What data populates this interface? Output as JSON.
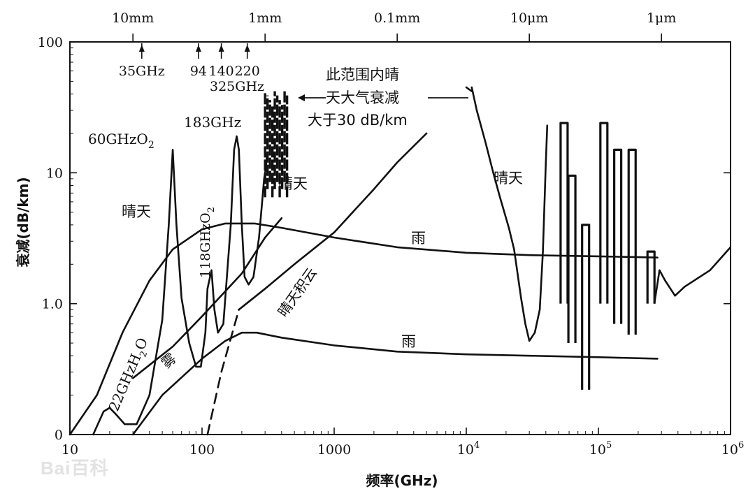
{
  "chart_data": {
    "type": "line",
    "xlabel": "频率(GHz)",
    "ylabel": "衰减(dB/km)",
    "xscale": "log",
    "xlim": [
      10,
      1000000
    ],
    "ylim": [
      0.1,
      100
    ],
    "x_ticks": [
      {
        "value": 10,
        "label": "10"
      },
      {
        "value": 100,
        "label": "100"
      },
      {
        "value": 1000,
        "label": "1000"
      },
      {
        "value": 10000,
        "label": "10",
        "sup": "4"
      },
      {
        "value": 100000,
        "label": "10",
        "sup": "5"
      },
      {
        "value": 1000000,
        "label": "10",
        "sup": "6"
      }
    ],
    "y_ticks": [
      {
        "value": 0.1,
        "label": "0"
      },
      {
        "value": 1,
        "label": "1.0"
      },
      {
        "value": 10,
        "label": "10"
      },
      {
        "value": 100,
        "label": "100"
      }
    ],
    "top_axis_ticks": [
      {
        "value": 30,
        "label": "10mm"
      },
      {
        "value": 300,
        "label": "1mm"
      },
      {
        "value": 3000,
        "label": "0.1mm"
      },
      {
        "value": 30000,
        "label": "10μm"
      },
      {
        "value": 300000,
        "label": "1μm"
      }
    ],
    "series": [
      {
        "id": "rain-heavy",
        "dashed": false,
        "points": [
          [
            10,
            0.1
          ],
          [
            16,
            0.2
          ],
          [
            25,
            0.6
          ],
          [
            40,
            1.5
          ],
          [
            60,
            2.6
          ],
          [
            100,
            3.7
          ],
          [
            150,
            4.1
          ],
          [
            250,
            4.1
          ],
          [
            400,
            3.8
          ],
          [
            1000,
            3.2
          ],
          [
            3000,
            2.7
          ],
          [
            10000,
            2.45
          ],
          [
            30000,
            2.35
          ],
          [
            100000,
            2.3
          ],
          [
            280000,
            2.25
          ]
        ]
      },
      {
        "id": "rain-light",
        "dashed": false,
        "points": [
          [
            30,
            0.1
          ],
          [
            50,
            0.2
          ],
          [
            100,
            0.38
          ],
          [
            150,
            0.52
          ],
          [
            200,
            0.6
          ],
          [
            260,
            0.6
          ],
          [
            400,
            0.55
          ],
          [
            1000,
            0.48
          ],
          [
            3000,
            0.43
          ],
          [
            10000,
            0.41
          ],
          [
            100000,
            0.39
          ],
          [
            280000,
            0.38
          ]
        ]
      },
      {
        "id": "fog",
        "dashed": false,
        "points": [
          [
            30,
            0.27
          ],
          [
            60,
            0.47
          ],
          [
            100,
            0.8
          ],
          [
            200,
            1.7
          ],
          [
            300,
            3.2
          ],
          [
            400,
            4.5
          ]
        ]
      },
      {
        "id": "clear-cumulus",
        "dashed": false,
        "points": [
          [
            190,
            0.9
          ],
          [
            300,
            1.3
          ],
          [
            500,
            2
          ],
          [
            1000,
            3.5
          ],
          [
            2000,
            7.5
          ],
          [
            3000,
            12
          ],
          [
            5000,
            20
          ]
        ]
      },
      {
        "id": "clear-cumulus-dashed",
        "dashed": true,
        "points": [
          [
            110,
            0.1
          ],
          [
            140,
            0.3
          ],
          [
            190,
            0.9
          ]
        ]
      },
      {
        "id": "clear-air-mm",
        "dashed": false,
        "points": [
          [
            15,
            0.1
          ],
          [
            18,
            0.15
          ],
          [
            20,
            0.16
          ],
          [
            22,
            0.145
          ],
          [
            26,
            0.12
          ],
          [
            32,
            0.12
          ],
          [
            40,
            0.2
          ],
          [
            50,
            0.75
          ],
          [
            56,
            4
          ],
          [
            60,
            15
          ],
          [
            64,
            4
          ],
          [
            70,
            1.1
          ],
          [
            80,
            0.5
          ],
          [
            90,
            0.33
          ],
          [
            98,
            0.33
          ],
          [
            106,
            0.6
          ],
          [
            110,
            1.3
          ],
          [
            118,
            1.8
          ],
          [
            124,
            0.9
          ],
          [
            132,
            0.6
          ],
          [
            145,
            0.7
          ],
          [
            165,
            4
          ],
          [
            175,
            15
          ],
          [
            183,
            19
          ],
          [
            190,
            15
          ],
          [
            200,
            4
          ],
          [
            210,
            1.6
          ],
          [
            225,
            1.4
          ],
          [
            245,
            1.6
          ],
          [
            270,
            3.2
          ],
          [
            285,
            6
          ],
          [
            295,
            9
          ],
          [
            305,
            11
          ],
          [
            310,
            14
          ]
        ]
      },
      {
        "id": "clear-air-ir",
        "dashed": false,
        "points": [
          [
            11000,
            45
          ],
          [
            12000,
            30
          ],
          [
            14000,
            17
          ],
          [
            16000,
            10
          ],
          [
            18000,
            6.5
          ],
          [
            21000,
            3.8
          ],
          [
            23000,
            2.6
          ],
          [
            26000,
            1.1
          ],
          [
            28000,
            0.7
          ],
          [
            30000,
            0.52
          ],
          [
            33000,
            0.6
          ],
          [
            36000,
            0.9
          ],
          [
            38000,
            2.5
          ],
          [
            40000,
            12
          ],
          [
            41000,
            23
          ]
        ]
      },
      {
        "id": "clear-air-ir-dashed",
        "dashed": true,
        "points": [
          [
            10000,
            45
          ],
          [
            11000,
            42
          ]
        ]
      }
    ],
    "absorption_bands": [
      {
        "x": 55000,
        "min": 1.0,
        "max": 24
      },
      {
        "x": 63000,
        "min": 0.5,
        "max": 9.5
      },
      {
        "x": 80000,
        "min": 0.22,
        "max": 4
      },
      {
        "x": 110000,
        "min": 1.0,
        "max": 24
      },
      {
        "x": 140000,
        "min": 0.7,
        "max": 15
      },
      {
        "x": 180000,
        "min": 0.58,
        "max": 15
      },
      {
        "x": 250000,
        "min": 1.0,
        "max": 2.5
      }
    ],
    "mm_band_cluster": {
      "x_range": [
        300,
        440
      ],
      "min": 6.5,
      "max": 42
    },
    "ir_tail": [
      [
        265000,
        1.0
      ],
      [
        290000,
        1.8
      ],
      [
        320000,
        1.5
      ],
      [
        380000,
        1.15
      ],
      [
        450000,
        1.35
      ],
      [
        700000,
        1.8
      ],
      [
        1000000,
        2.7
      ]
    ],
    "frequency_markers": [
      {
        "x": 35,
        "label": "35GHz"
      },
      {
        "x": 94,
        "label": "94"
      },
      {
        "x": 140,
        "label": "140"
      },
      {
        "x": 220,
        "label": "220"
      }
    ],
    "annotations": {
      "f325": "325GHz",
      "f183": "183GHz",
      "f60": "60",
      "f60b": "GHzO",
      "f60sub": "2",
      "note_line1": "此范围内晴",
      "note_line2": "天大气衰减",
      "note_line3": "大于30 dB/km",
      "clear1": "晴天",
      "clear2": "晴天",
      "clear3": "晴天",
      "o2_118": "118GHzO",
      "o2_118sub": "2",
      "h2o_22": "22GHzH",
      "h2o_22sub": "2",
      "h2o_22end": "O",
      "fog": "雾",
      "cumulus": "晴天积云",
      "rain1": "雨",
      "rain2": "雨"
    }
  },
  "watermark": "Bai百科"
}
